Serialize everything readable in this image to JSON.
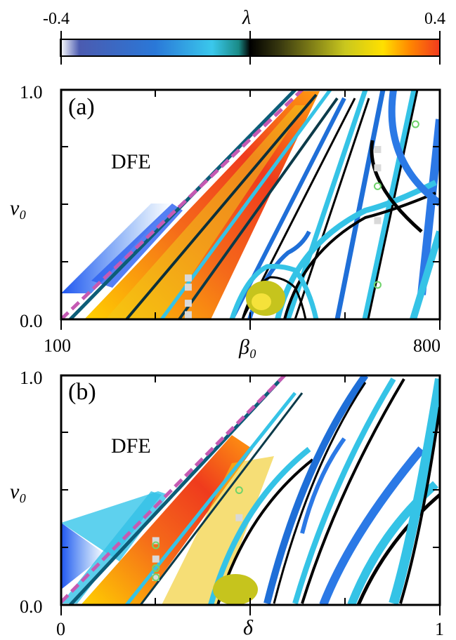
{
  "colorbar": {
    "label": "λ",
    "min_label": "-0.4",
    "max_label": "0.4",
    "range": [
      -0.4,
      0.4
    ],
    "colors": [
      "#ffffff",
      "#2a3d9c",
      "#1f7fe0",
      "#33c6e8",
      "#0a3a3a",
      "#000000",
      "#3c3c00",
      "#c8c81a",
      "#ffe600",
      "#ff8a00",
      "#f23a1e"
    ]
  },
  "chart_data": [
    {
      "type": "heatmap",
      "panel": "(a)",
      "region_label": "DFE",
      "xlabel": "β₀",
      "ylabel": "v₀",
      "xlim": [
        100,
        800
      ],
      "ylim": [
        0.0,
        1.0
      ],
      "x_tick_labels": [
        "100",
        "800"
      ],
      "y_tick_labels": [
        "0.0",
        "1.0"
      ],
      "boundary_line": {
        "x": [
          100,
          650
        ],
        "y": [
          0.0,
          1.0
        ]
      },
      "square_markers": {
        "x": [
          335,
          335,
          335,
          335,
          685,
          685,
          685
        ],
        "y": [
          0.18,
          0.14,
          0.07,
          0.02,
          0.74,
          0.66,
          0.43
        ]
      },
      "circle_markers": {
        "x": [
          685,
          685,
          755
        ],
        "y": [
          0.58,
          0.15,
          0.85
        ]
      }
    },
    {
      "type": "heatmap",
      "panel": "(b)",
      "region_label": "DFE",
      "xlabel": "δ",
      "ylabel": "v₀",
      "xlim": [
        0,
        1
      ],
      "ylim": [
        0.0,
        1.0
      ],
      "x_tick_labels": [
        "0",
        "1"
      ],
      "y_tick_labels": [
        "0.0",
        "1.0"
      ],
      "boundary_line": {
        "x": [
          0.0,
          0.59
        ],
        "y": [
          0.0,
          1.0
        ]
      },
      "square_markers": {
        "x": [
          0.25,
          0.25,
          0.25,
          0.47
        ],
        "y": [
          0.28,
          0.2,
          0.12,
          0.38
        ]
      },
      "circle_markers": {
        "x": [
          0.25,
          0.25,
          0.25,
          0.47
        ],
        "y": [
          0.26,
          0.16,
          0.12,
          0.5
        ]
      }
    }
  ]
}
